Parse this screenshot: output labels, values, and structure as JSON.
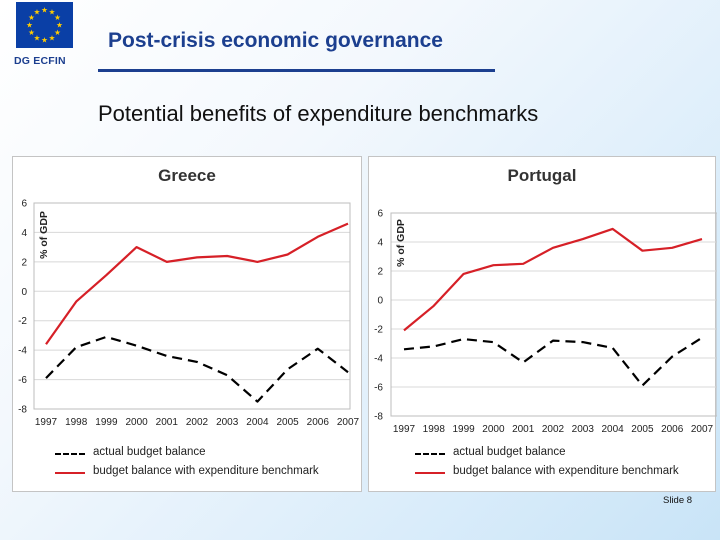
{
  "header": {
    "org": "DG ECFIN",
    "title": "Post-crisis economic governance"
  },
  "slide_title": "Potential benefits of expenditure benchmarks",
  "slide_number": "Slide 8",
  "colors": {
    "actual": "#000000",
    "benchmark": "#d62027",
    "header_blue": "#1c3f8f",
    "eu_blue": "#0a3fa6",
    "eu_gold": "#ffcc00"
  },
  "chart_data": [
    {
      "type": "line",
      "title": "Greece",
      "ylabel": "% of GDP",
      "xlabel": "",
      "x": [
        "1997",
        "1998",
        "1999",
        "2000",
        "2001",
        "2002",
        "2003",
        "2004",
        "2005",
        "2006",
        "2007"
      ],
      "ylim": [
        -8,
        6
      ],
      "yticks": [
        6,
        4,
        2,
        0,
        -2,
        -4,
        -6,
        -8
      ],
      "grid": true,
      "legend_position": "bottom",
      "series": [
        {
          "name": "actual budget balance",
          "values": [
            -5.9,
            -3.8,
            -3.1,
            -3.7,
            -4.4,
            -4.8,
            -5.7,
            -7.5,
            -5.3,
            -3.9,
            -5.5
          ]
        },
        {
          "name": "budget balance with expenditure benchmark",
          "values": [
            -3.6,
            -0.7,
            1.1,
            3.0,
            2.0,
            2.3,
            2.4,
            2.0,
            2.5,
            3.7,
            4.6
          ]
        }
      ]
    },
    {
      "type": "line",
      "title": "Portugal",
      "ylabel": "% of GDP",
      "xlabel": "",
      "x": [
        "1997",
        "1998",
        "1999",
        "2000",
        "2001",
        "2002",
        "2003",
        "2004",
        "2005",
        "2006",
        "2007"
      ],
      "ylim": [
        -8,
        6
      ],
      "yticks": [
        6,
        4,
        2,
        0,
        -2,
        -4,
        -6,
        -8
      ],
      "grid": true,
      "legend_position": "bottom",
      "series": [
        {
          "name": "actual budget balance",
          "values": [
            -3.4,
            -3.2,
            -2.7,
            -2.9,
            -4.3,
            -2.8,
            -2.9,
            -3.3,
            -5.9,
            -3.9,
            -2.6
          ]
        },
        {
          "name": "budget balance with expenditure benchmark",
          "values": [
            -2.1,
            -0.4,
            1.8,
            2.4,
            2.5,
            3.6,
            4.2,
            4.9,
            3.4,
            3.6,
            4.2
          ]
        }
      ]
    }
  ]
}
